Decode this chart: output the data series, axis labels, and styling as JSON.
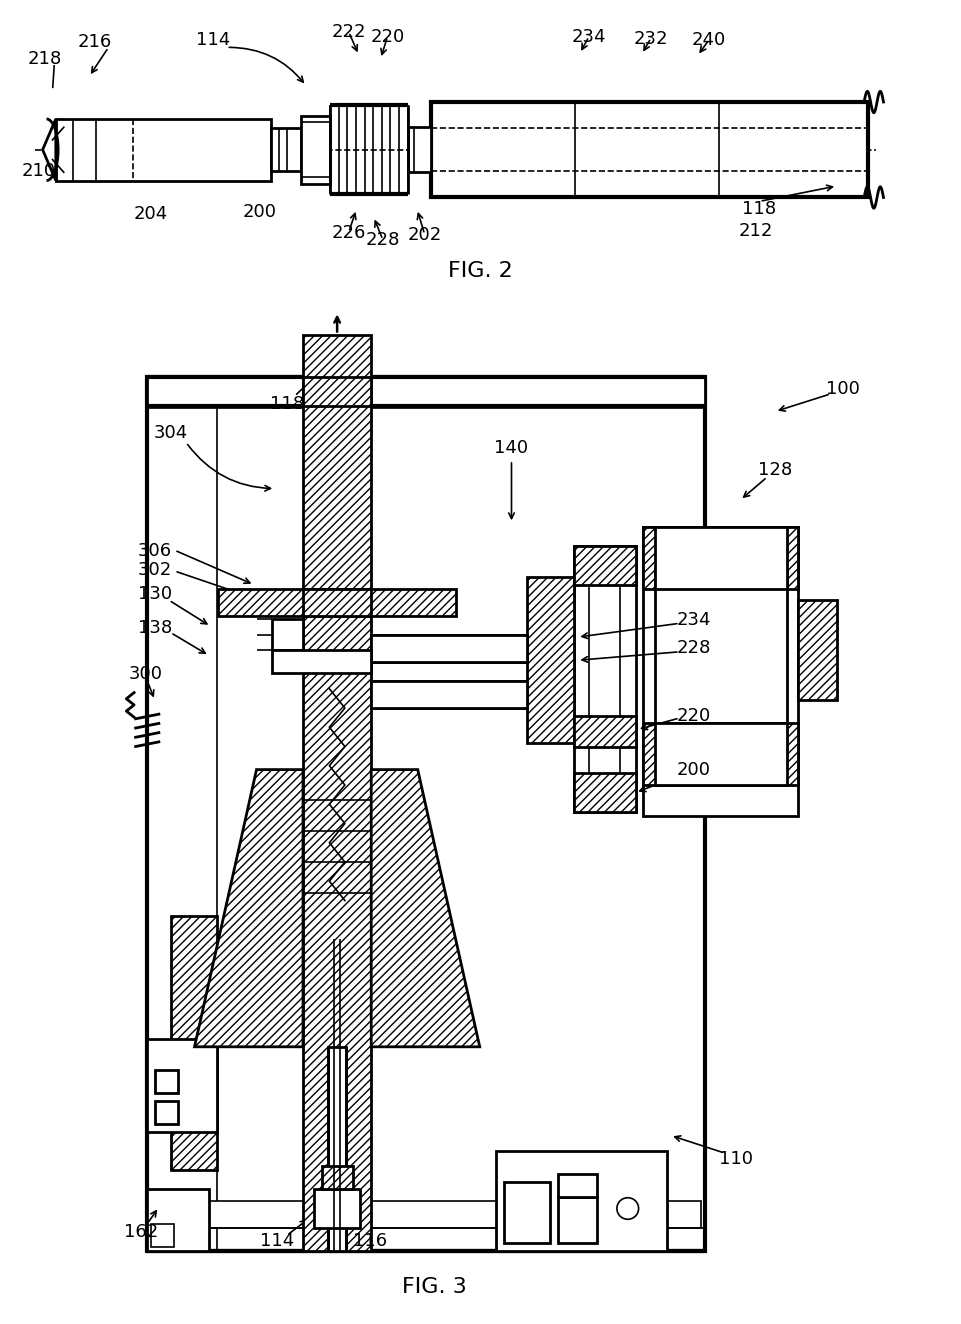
{
  "bg_color": "#ffffff",
  "line_color": "#000000",
  "fig2_title": "FIG. 2",
  "fig3_title": "FIG. 3",
  "lw_main": 2.0,
  "lw_thin": 1.2,
  "lw_thick": 3.0
}
